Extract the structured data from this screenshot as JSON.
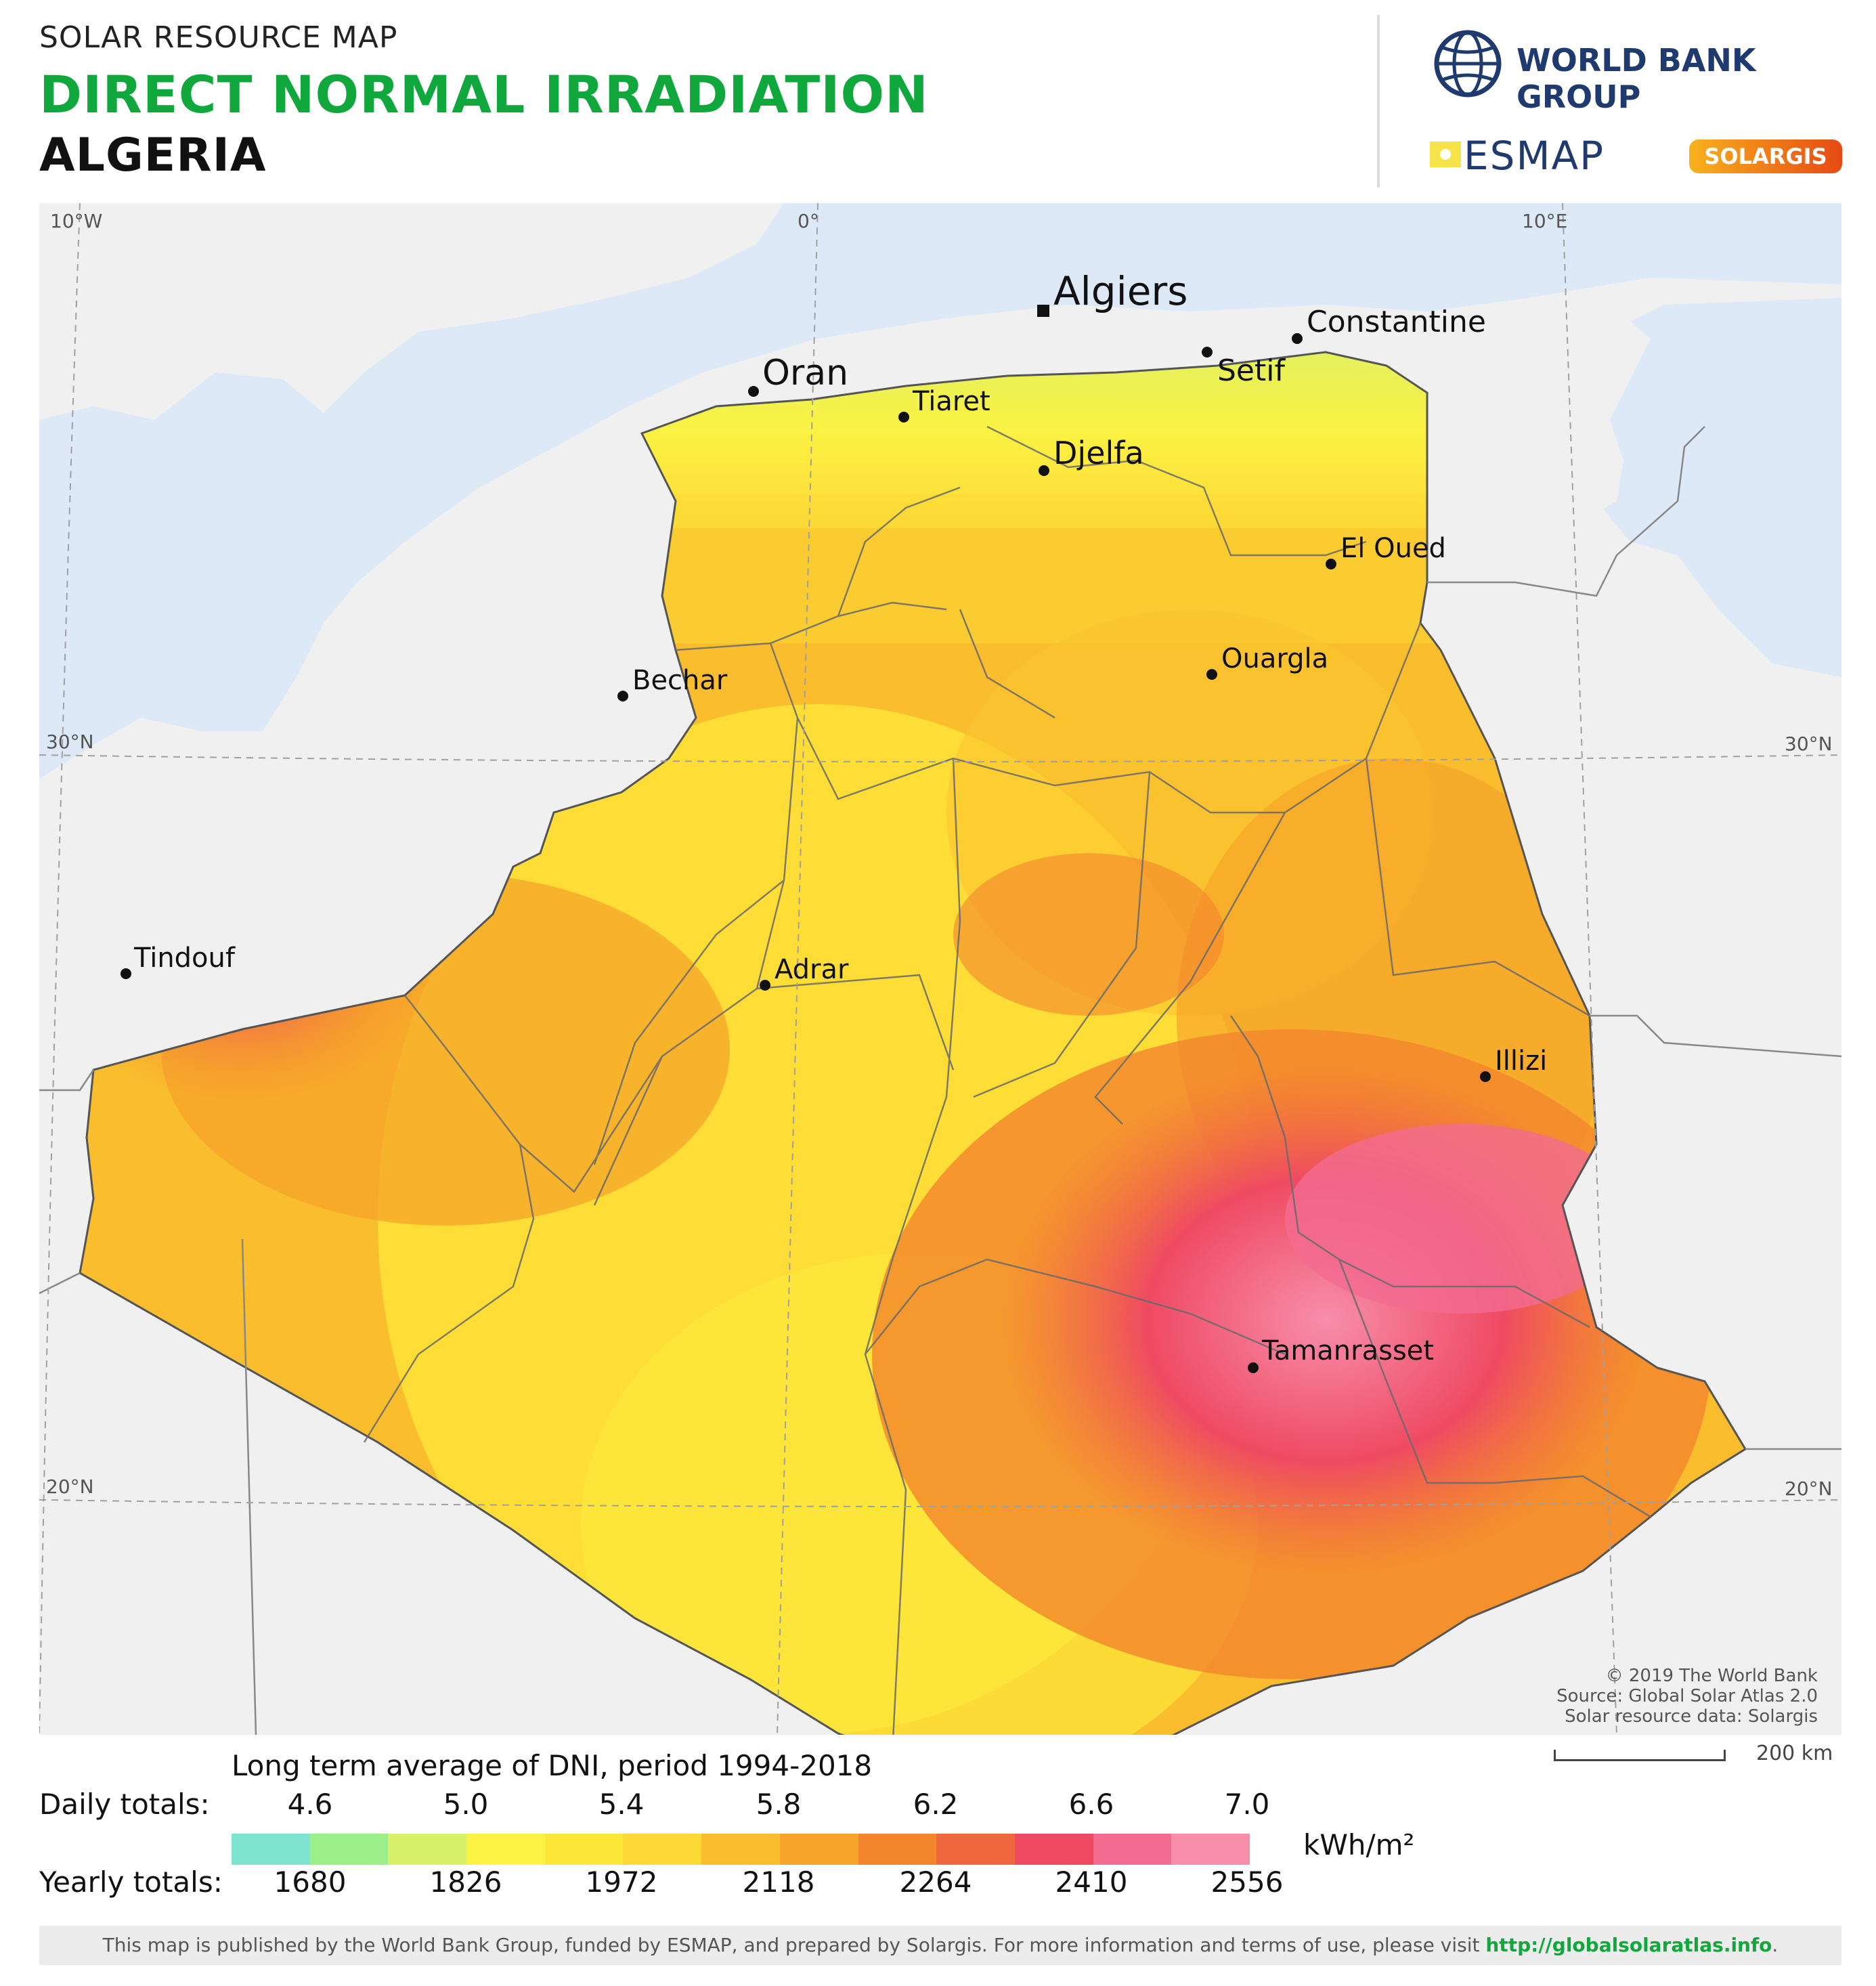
{
  "header": {
    "subtitle": "SOLAR RESOURCE MAP",
    "title": "DIRECT NORMAL IRRADIATION",
    "country": "ALGERIA"
  },
  "logos": {
    "world_bank": "WORLD BANK GROUP",
    "esmap": "ESMAP",
    "solargis": "SOLARGIS",
    "globe_icon": "globe-icon"
  },
  "map": {
    "graticule": {
      "lon_labels": [
        "10°W",
        "0°",
        "10°E"
      ],
      "lat_labels": [
        "30°N",
        "20°N"
      ]
    },
    "cities": [
      {
        "name": "Algiers",
        "capital": true
      },
      {
        "name": "Constantine"
      },
      {
        "name": "Setif"
      },
      {
        "name": "Oran"
      },
      {
        "name": "Tiaret"
      },
      {
        "name": "Djelfa"
      },
      {
        "name": "El Oued"
      },
      {
        "name": "Ouargla"
      },
      {
        "name": "Bechar"
      },
      {
        "name": "Tindouf"
      },
      {
        "name": "Adrar"
      },
      {
        "name": "Illizi"
      },
      {
        "name": "Tamanrasset"
      }
    ],
    "credits": [
      "© 2019 The World Bank",
      "Source: Global Solar Atlas 2.0",
      "Solar resource data: Solargis"
    ],
    "scale": "200 km"
  },
  "legend": {
    "title": "Long term average of DNI, period 1994-2018",
    "daily_label": "Daily totals:",
    "yearly_label": "Yearly totals:",
    "daily_ticks": [
      "4.6",
      "5.0",
      "5.4",
      "5.8",
      "6.2",
      "6.6",
      "7.0"
    ],
    "yearly_ticks": [
      "1680",
      "1826",
      "1972",
      "2118",
      "2264",
      "2410",
      "2556"
    ],
    "unit": "kWh/m²",
    "colors": [
      "#7ee3cf",
      "#9bef8a",
      "#d9f06a",
      "#fbf243",
      "#fde83a",
      "#fdd936",
      "#f9bd2e",
      "#f6a42a",
      "#f3862d",
      "#f06840",
      "#ef4a63",
      "#f26b91",
      "#f78eaa"
    ]
  },
  "footer": {
    "text": "This map is published by the World Bank Group, funded by ESMAP, and prepared by Solargis. For more information and terms of use, please visit ",
    "link": "http://globalsolaratlas.info",
    "end": "."
  }
}
